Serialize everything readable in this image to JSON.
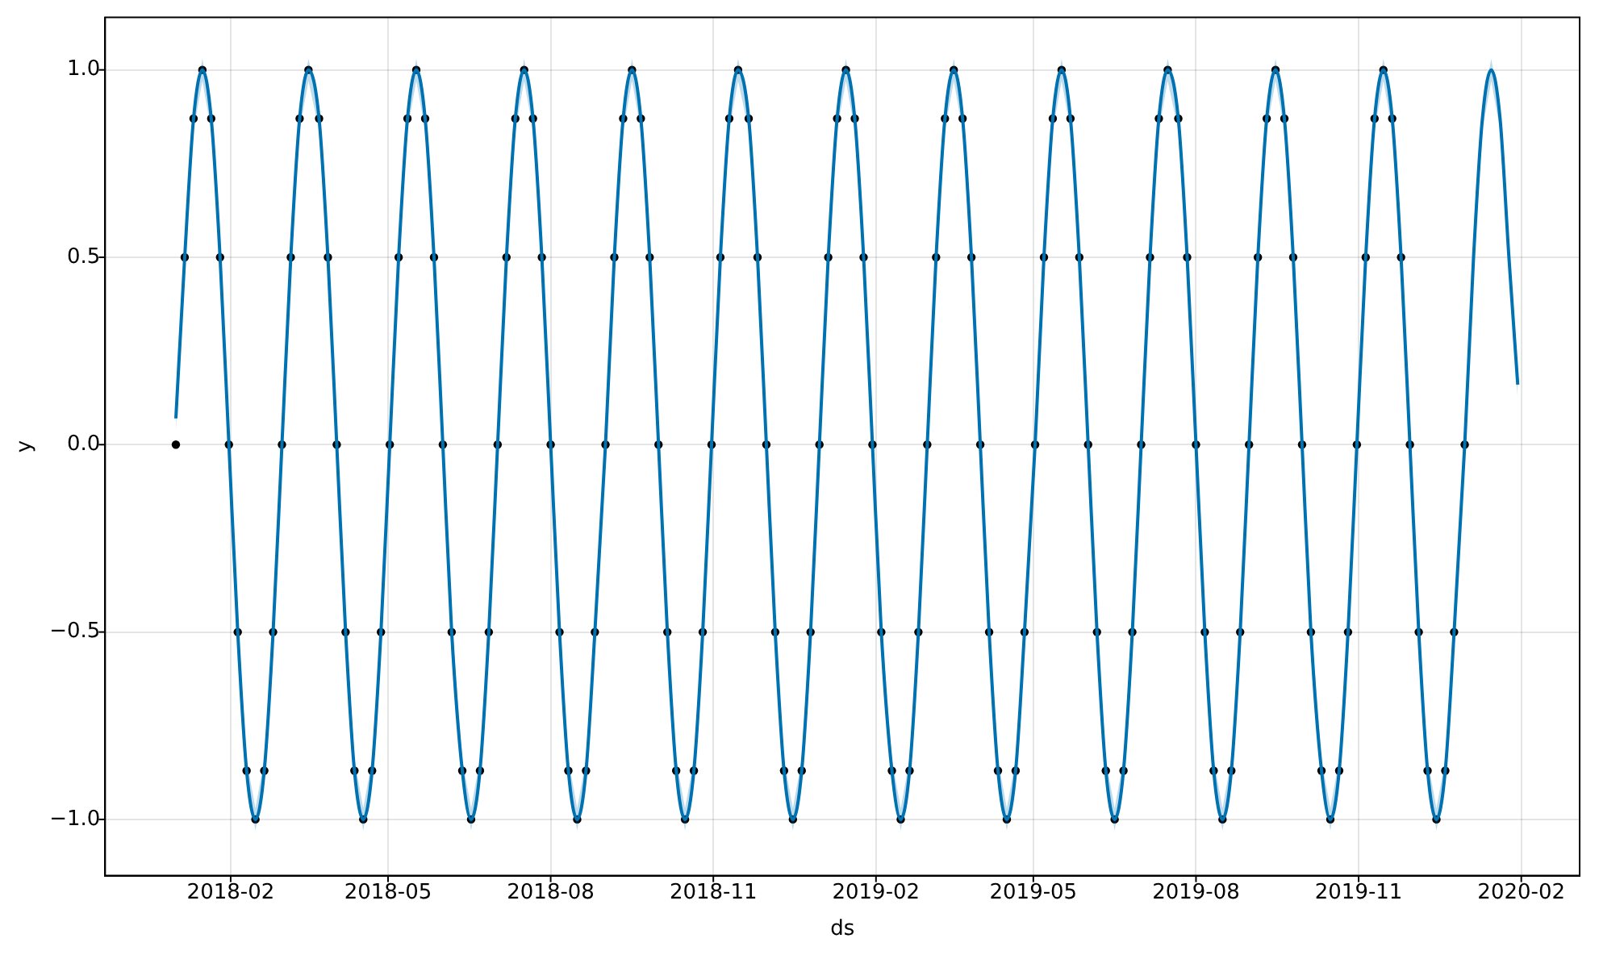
{
  "chart_data": {
    "type": "scatter",
    "xlabel": "ds",
    "ylabel": "y",
    "x": [
      "2018-01-01",
      "2018-01-06",
      "2018-01-11",
      "2018-01-16",
      "2018-01-21",
      "2018-01-26",
      "2018-01-31",
      "2018-02-05",
      "2018-02-10",
      "2018-02-15",
      "2018-02-20",
      "2018-02-25",
      "2018-03-02",
      "2018-03-07",
      "2018-03-12",
      "2018-03-17",
      "2018-03-23",
      "2018-03-28",
      "2018-04-02",
      "2018-04-07",
      "2018-04-12",
      "2018-04-17",
      "2018-04-22",
      "2018-04-27",
      "2018-05-02",
      "2018-05-07",
      "2018-05-12",
      "2018-05-17",
      "2018-05-22",
      "2018-05-27",
      "2018-06-01",
      "2018-06-06",
      "2018-06-12",
      "2018-06-17",
      "2018-06-22",
      "2018-06-27",
      "2018-07-02",
      "2018-07-07",
      "2018-07-12",
      "2018-07-17",
      "2018-07-22",
      "2018-07-27",
      "2018-08-01",
      "2018-08-06",
      "2018-08-11",
      "2018-08-16",
      "2018-08-21",
      "2018-08-26",
      "2018-09-01",
      "2018-09-06",
      "2018-09-11",
      "2018-09-16",
      "2018-09-21",
      "2018-09-26",
      "2018-10-01",
      "2018-10-06",
      "2018-10-11",
      "2018-10-16",
      "2018-10-21",
      "2018-10-26",
      "2018-10-31",
      "2018-11-05",
      "2018-11-10",
      "2018-11-15",
      "2018-11-21",
      "2018-11-26",
      "2018-12-01",
      "2018-12-06",
      "2018-12-11",
      "2018-12-16",
      "2018-12-21",
      "2018-12-26",
      "2018-12-31",
      "2019-01-05",
      "2019-01-10",
      "2019-01-15",
      "2019-01-20",
      "2019-01-25",
      "2019-01-30",
      "2019-02-04",
      "2019-02-10",
      "2019-02-15",
      "2019-02-20",
      "2019-02-25",
      "2019-03-02",
      "2019-03-07",
      "2019-03-12",
      "2019-03-17",
      "2019-03-22",
      "2019-03-27",
      "2019-04-01",
      "2019-04-06",
      "2019-04-11",
      "2019-04-16",
      "2019-04-21",
      "2019-04-26",
      "2019-05-02",
      "2019-05-07",
      "2019-05-12",
      "2019-05-17",
      "2019-05-22",
      "2019-05-27",
      "2019-06-01",
      "2019-06-06",
      "2019-06-11",
      "2019-06-16",
      "2019-06-21",
      "2019-06-26",
      "2019-07-01",
      "2019-07-06",
      "2019-07-11",
      "2019-07-16",
      "2019-07-22",
      "2019-07-27",
      "2019-08-01",
      "2019-08-06",
      "2019-08-11",
      "2019-08-16",
      "2019-08-21",
      "2019-08-26",
      "2019-08-31",
      "2019-09-05",
      "2019-09-10",
      "2019-09-15",
      "2019-09-20",
      "2019-09-25",
      "2019-09-30",
      "2019-10-05",
      "2019-10-11",
      "2019-10-16",
      "2019-10-21",
      "2019-10-26",
      "2019-10-31",
      "2019-11-05",
      "2019-11-10",
      "2019-11-15",
      "2019-11-20",
      "2019-11-25",
      "2019-11-30",
      "2019-12-05",
      "2019-12-10",
      "2019-12-15",
      "2019-12-20",
      "2019-12-25",
      "2019-12-31",
      "2020-01-05",
      "2020-01-10",
      "2020-01-15",
      "2020-01-20",
      "2020-01-25",
      "2020-01-30"
    ],
    "series": [
      {
        "color": "#000000",
        "marker": "circle",
        "values": [
          0,
          0.5,
          0.87,
          1,
          0.87,
          0.5,
          0,
          -0.5,
          -0.87,
          -1,
          -0.87,
          -0.5,
          0,
          0.5,
          0.87,
          1,
          0.87,
          0.5,
          0,
          -0.5,
          -0.87,
          -1,
          -0.87,
          -0.5,
          0,
          0.5,
          0.87,
          1,
          0.87,
          0.5,
          0,
          -0.5,
          -0.87,
          -1,
          -0.87,
          -0.5,
          0,
          0.5,
          0.87,
          1,
          0.87,
          0.5,
          0,
          -0.5,
          -0.87,
          -1,
          -0.87,
          -0.5,
          0,
          0.5,
          0.87,
          1,
          0.87,
          0.5,
          0,
          -0.5,
          -0.87,
          -1,
          -0.87,
          -0.5,
          0,
          0.5,
          0.87,
          1,
          0.87,
          0.5,
          0,
          -0.5,
          -0.87,
          -1,
          -0.87,
          -0.5,
          0,
          0.5,
          0.87,
          1,
          0.87,
          0.5,
          0,
          -0.5,
          -0.87,
          -1,
          -0.87,
          -0.5,
          0,
          0.5,
          0.87,
          1,
          0.87,
          0.5,
          0,
          -0.5,
          -0.87,
          -1,
          -0.87,
          -0.5,
          0,
          0.5,
          0.87,
          1,
          0.87,
          0.5,
          0,
          -0.5,
          -0.87,
          -1,
          -0.87,
          -0.5,
          0,
          0.5,
          0.87,
          1,
          0.87,
          0.5,
          0,
          -0.5,
          -0.87,
          -1,
          -0.87,
          -0.5,
          0,
          0.5,
          0.87,
          1,
          0.87,
          0.5,
          0,
          -0.5,
          -0.87,
          -1,
          -0.87,
          -0.5,
          0,
          0.5,
          0.87,
          1,
          0.87,
          0.5,
          0,
          -0.5,
          -0.87,
          -1,
          -0.87,
          -0.5,
          0,
          null,
          null,
          null,
          null,
          null,
          null
        ]
      },
      {
        "type": "line",
        "color": "#0072b2",
        "values": [
          0.07,
          0.5,
          0.87,
          1,
          0.87,
          0.5,
          0,
          -0.5,
          -0.87,
          -1,
          -0.87,
          -0.5,
          0,
          0.5,
          0.87,
          1,
          0.87,
          0.5,
          0,
          -0.5,
          -0.87,
          -1,
          -0.87,
          -0.5,
          0,
          0.5,
          0.87,
          1,
          0.87,
          0.5,
          0,
          -0.5,
          -0.87,
          -1,
          -0.87,
          -0.5,
          0,
          0.5,
          0.87,
          1,
          0.87,
          0.5,
          0,
          -0.5,
          -0.87,
          -1,
          -0.87,
          -0.5,
          0,
          0.5,
          0.87,
          1,
          0.87,
          0.5,
          0,
          -0.5,
          -0.87,
          -1,
          -0.87,
          -0.5,
          0,
          0.5,
          0.87,
          1,
          0.87,
          0.5,
          0,
          -0.5,
          -0.87,
          -1,
          -0.87,
          -0.5,
          0,
          0.5,
          0.87,
          1,
          0.87,
          0.5,
          0,
          -0.5,
          -0.87,
          -1,
          -0.87,
          -0.5,
          0,
          0.5,
          0.87,
          1,
          0.87,
          0.5,
          0,
          -0.5,
          -0.87,
          -1,
          -0.87,
          -0.5,
          0,
          0.5,
          0.87,
          1,
          0.87,
          0.5,
          0,
          -0.5,
          -0.87,
          -1,
          -0.87,
          -0.5,
          0,
          0.5,
          0.87,
          1,
          0.87,
          0.5,
          0,
          -0.5,
          -0.87,
          -1,
          -0.87,
          -0.5,
          0,
          0.5,
          0.87,
          1,
          0.87,
          0.5,
          0,
          -0.5,
          -0.87,
          -1,
          -0.87,
          -0.5,
          0,
          0.5,
          0.87,
          1,
          0.87,
          0.5,
          0,
          -0.5,
          -0.87,
          -1,
          -0.87,
          -0.5,
          0,
          0.5,
          0.87,
          1,
          0.87,
          0.5,
          0.16
        ],
        "lower": [
          0.04,
          0.47,
          0.84,
          0.97,
          0.84,
          0.47,
          -0.03,
          -0.53,
          -0.9,
          -1.03,
          -0.9,
          -0.53,
          -0.03,
          0.47,
          0.84,
          0.97,
          0.84,
          0.47,
          -0.03,
          -0.53,
          -0.9,
          -1.03,
          -0.9,
          -0.53,
          -0.03,
          0.47,
          0.84,
          0.97,
          0.84,
          0.47,
          -0.03,
          -0.53,
          -0.9,
          -1.03,
          -0.9,
          -0.53,
          -0.03,
          0.47,
          0.84,
          0.97,
          0.84,
          0.47,
          -0.03,
          -0.53,
          -0.9,
          -1.03,
          -0.9,
          -0.53,
          -0.03,
          0.47,
          0.84,
          0.97,
          0.84,
          0.47,
          -0.03,
          -0.53,
          -0.9,
          -1.03,
          -0.9,
          -0.53,
          -0.03,
          0.47,
          0.84,
          0.97,
          0.84,
          0.47,
          -0.03,
          -0.53,
          -0.9,
          -1.03,
          -0.9,
          -0.53,
          -0.03,
          0.47,
          0.84,
          0.97,
          0.84,
          0.47,
          -0.03,
          -0.53,
          -0.9,
          -1.03,
          -0.9,
          -0.53,
          -0.03,
          0.47,
          0.84,
          0.97,
          0.84,
          0.47,
          -0.03,
          -0.53,
          -0.9,
          -1.03,
          -0.9,
          -0.53,
          -0.03,
          0.47,
          0.84,
          0.97,
          0.84,
          0.47,
          -0.03,
          -0.53,
          -0.9,
          -1.03,
          -0.9,
          -0.53,
          -0.03,
          0.47,
          0.84,
          0.97,
          0.84,
          0.47,
          -0.03,
          -0.53,
          -0.9,
          -1.03,
          -0.9,
          -0.53,
          -0.03,
          0.47,
          0.84,
          0.97,
          0.84,
          0.47,
          -0.03,
          -0.53,
          -0.9,
          -1.03,
          -0.9,
          -0.53,
          -0.03,
          0.47,
          0.84,
          0.97,
          0.84,
          0.47,
          -0.03,
          -0.53,
          -0.9,
          -1.03,
          -0.9,
          -0.53,
          -0.03,
          0.47,
          0.84,
          0.97,
          0.84,
          0.47,
          0.12
        ],
        "upper": [
          0.1,
          0.53,
          0.9,
          1.03,
          0.9,
          0.53,
          0.03,
          -0.47,
          -0.84,
          -0.97,
          -0.84,
          -0.47,
          0.03,
          0.53,
          0.9,
          1.03,
          0.9,
          0.53,
          0.03,
          -0.47,
          -0.84,
          -0.97,
          -0.84,
          -0.47,
          0.03,
          0.53,
          0.9,
          1.03,
          0.9,
          0.53,
          0.03,
          -0.47,
          -0.84,
          -0.97,
          -0.84,
          -0.47,
          0.03,
          0.53,
          0.9,
          1.03,
          0.9,
          0.53,
          0.03,
          -0.47,
          -0.84,
          -0.97,
          -0.84,
          -0.47,
          0.03,
          0.53,
          0.9,
          1.03,
          0.9,
          0.53,
          0.03,
          -0.47,
          -0.84,
          -0.97,
          -0.84,
          -0.47,
          0.03,
          0.53,
          0.9,
          1.03,
          0.9,
          0.53,
          0.03,
          -0.47,
          -0.84,
          -0.97,
          -0.84,
          -0.47,
          0.03,
          0.53,
          0.9,
          1.03,
          0.9,
          0.53,
          0.03,
          -0.47,
          -0.84,
          -0.97,
          -0.84,
          -0.47,
          0.03,
          0.53,
          0.9,
          1.03,
          0.9,
          0.53,
          0.03,
          -0.47,
          -0.84,
          -0.97,
          -0.84,
          -0.47,
          0.03,
          0.53,
          0.9,
          1.03,
          0.9,
          0.53,
          0.03,
          -0.47,
          -0.84,
          -0.97,
          -0.84,
          -0.47,
          0.03,
          0.53,
          0.9,
          1.03,
          0.9,
          0.53,
          0.03,
          -0.47,
          -0.84,
          -0.97,
          -0.84,
          -0.47,
          0.03,
          0.53,
          0.9,
          1.03,
          0.9,
          0.53,
          0.03,
          -0.47,
          -0.84,
          -0.97,
          -0.84,
          -0.47,
          0.03,
          0.53,
          0.9,
          1.03,
          0.9,
          0.53,
          0.03,
          -0.47,
          -0.84,
          -0.97,
          -0.84,
          -0.47,
          0.03,
          0.53,
          0.9,
          1.03,
          0.9,
          0.53,
          0.2
        ]
      }
    ],
    "xlim": [
      "2017-11-22",
      "2020-03-05"
    ],
    "xticks": [
      {
        "value": "2018-02-01",
        "label": "2018-02"
      },
      {
        "value": "2018-05-01",
        "label": "2018-05"
      },
      {
        "value": "2018-08-01",
        "label": "2018-08"
      },
      {
        "value": "2018-11-01",
        "label": "2018-11"
      },
      {
        "value": "2019-02-01",
        "label": "2019-02"
      },
      {
        "value": "2019-05-01",
        "label": "2019-05"
      },
      {
        "value": "2019-08-01",
        "label": "2019-08"
      },
      {
        "value": "2019-11-01",
        "label": "2019-11"
      },
      {
        "value": "2020-02-01",
        "label": "2020-02"
      }
    ],
    "ylim": [
      -1.15,
      1.14
    ],
    "yticks": [
      {
        "value": -1,
        "label": "−1.0"
      },
      {
        "value": -0.5,
        "label": "−0.5"
      },
      {
        "value": 0,
        "label": "0.0"
      },
      {
        "value": 0.5,
        "label": "0.5"
      },
      {
        "value": 1,
        "label": "1.0"
      }
    ],
    "grid": true
  }
}
